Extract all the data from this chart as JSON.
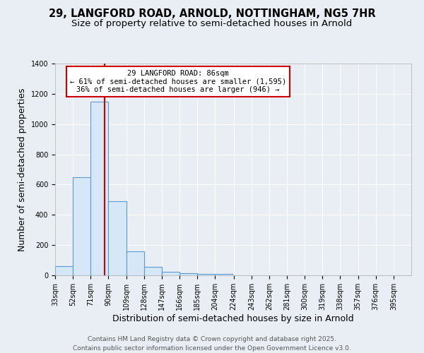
{
  "title": "29, LANGFORD ROAD, ARNOLD, NOTTINGHAM, NG5 7HR",
  "subtitle": "Size of property relative to semi-detached houses in Arnold",
  "xlabel": "Distribution of semi-detached houses by size in Arnold",
  "ylabel": "Number of semi-detached properties",
  "bins": [
    33,
    52,
    71,
    90,
    109,
    128,
    147,
    166,
    185,
    204,
    224,
    243,
    262,
    281,
    300,
    319,
    338,
    357,
    376,
    395,
    414
  ],
  "counts": [
    60,
    650,
    1150,
    490,
    160,
    55,
    25,
    15,
    10,
    10,
    0,
    0,
    0,
    0,
    0,
    0,
    0,
    0,
    0,
    0
  ],
  "bar_facecolor": "#d6e8f7",
  "bar_edgecolor": "#5b9bd5",
  "property_size": 86,
  "red_line_color": "#cc0000",
  "annotation_text": "29 LANGFORD ROAD: 86sqm\n← 61% of semi-detached houses are smaller (1,595)\n36% of semi-detached houses are larger (946) →",
  "annotation_box_color": "#cc0000",
  "ylim": [
    0,
    1400
  ],
  "yticks": [
    0,
    200,
    400,
    600,
    800,
    1000,
    1200,
    1400
  ],
  "background_color": "#e8eef4",
  "plot_bg_color": "#e8eef4",
  "grid_color": "#ffffff",
  "footer_line1": "Contains HM Land Registry data © Crown copyright and database right 2025.",
  "footer_line2": "Contains public sector information licensed under the Open Government Licence v3.0.",
  "title_fontsize": 10.5,
  "subtitle_fontsize": 9.5,
  "axis_label_fontsize": 9,
  "tick_fontsize": 7,
  "footer_fontsize": 6.5
}
